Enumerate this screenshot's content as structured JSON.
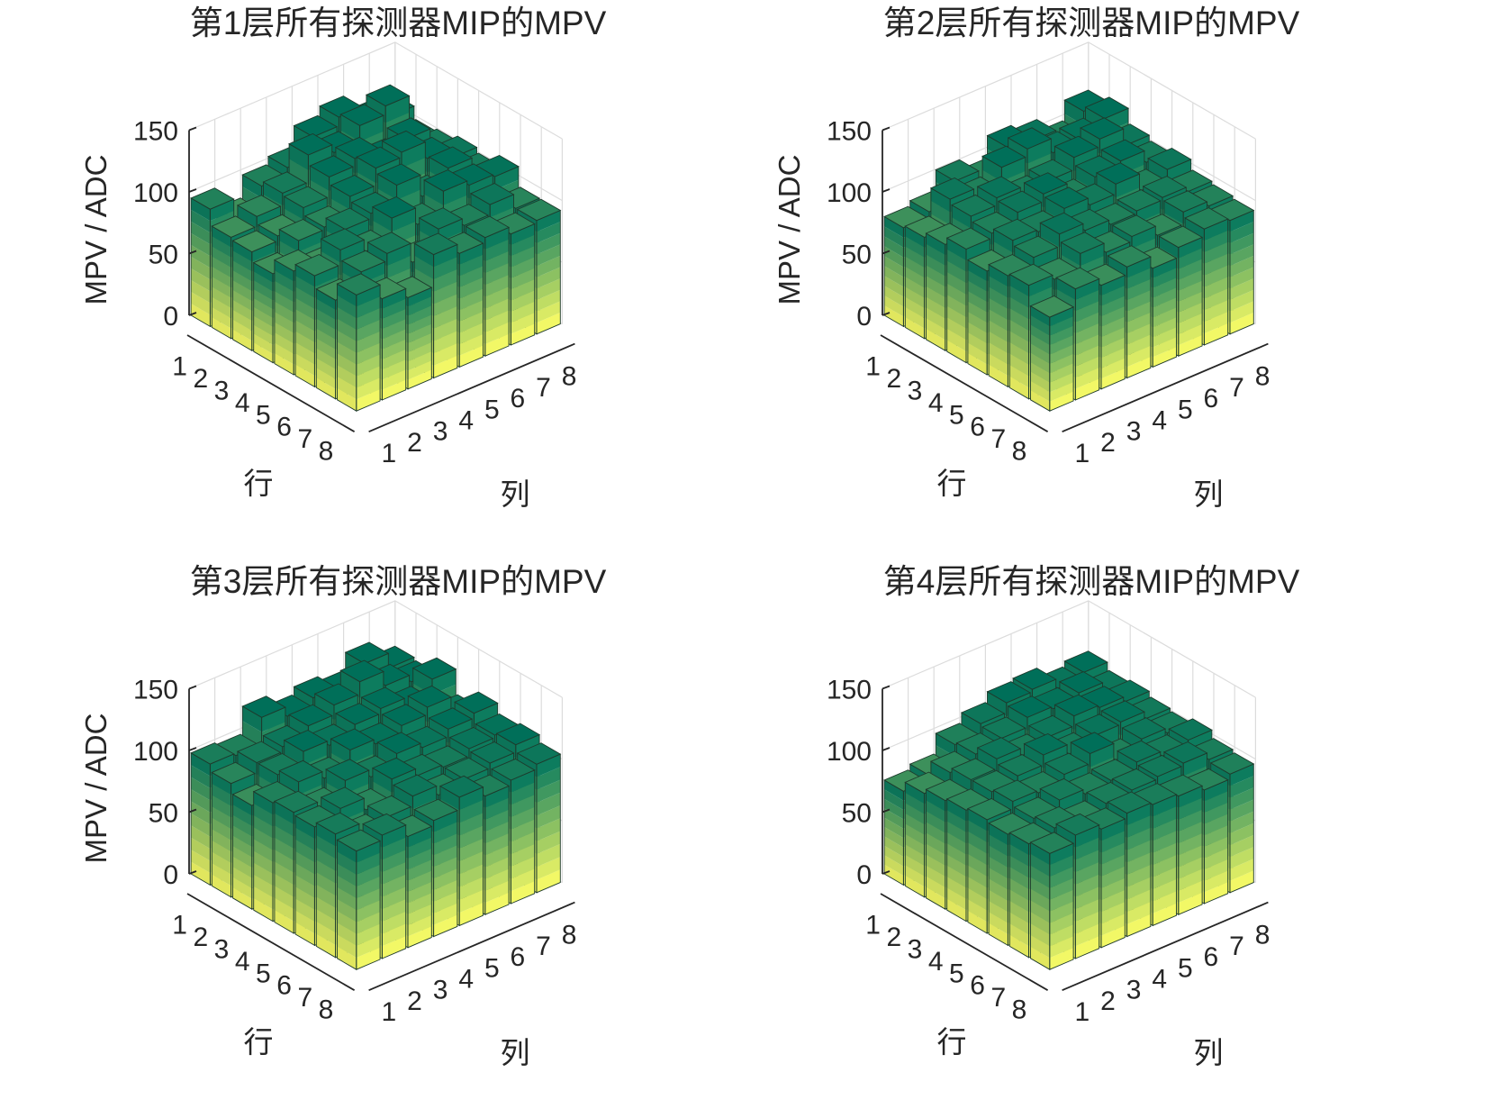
{
  "colors": {
    "low": "#ffff66",
    "high": "#00755e",
    "edge": "#1e3a2c",
    "text": "#262626",
    "grid": "#dcdcdc"
  },
  "chart_data": [
    {
      "type": "bar3d",
      "title": "第1层所有探测器MIP的MPV",
      "ylabel": "MPV / ADC",
      "row_label": "行",
      "col_label": "列",
      "rows": [
        "1",
        "2",
        "3",
        "4",
        "5",
        "6",
        "7",
        "8"
      ],
      "cols": [
        "1",
        "2",
        "3",
        "4",
        "5",
        "6",
        "7",
        "8"
      ],
      "zticks": [
        "0",
        "50",
        "100",
        "150"
      ],
      "zlim": [
        0,
        150
      ],
      "z": [
        [
          95,
          78,
          96,
          102,
          118,
          125,
          112,
          108
        ],
        [
          82,
          90,
          100,
          122,
          115,
          128,
          135,
          98
        ],
        [
          80,
          84,
          98,
          114,
          120,
          110,
          118,
          100
        ],
        [
          72,
          90,
          92,
          108,
          122,
          126,
          112,
          104
        ],
        [
          84,
          78,
          100,
          104,
          118,
          100,
          114,
          100
        ],
        [
          90,
          102,
          92,
          110,
          96,
          114,
          110,
          108
        ],
        [
          80,
          94,
          100,
          84,
          102,
          96,
          104,
          92
        ],
        [
          94,
          82,
          74,
          100,
          92,
          96,
          90,
          92
        ]
      ]
    },
    {
      "type": "bar3d",
      "title": "第2层所有探测器MIP的MPV",
      "ylabel": "MPV / ADC",
      "row_label": "行",
      "col_label": "列",
      "rows": [
        "1",
        "2",
        "3",
        "4",
        "5",
        "6",
        "7",
        "8"
      ],
      "cols": [
        "1",
        "2",
        "3",
        "4",
        "5",
        "6",
        "7",
        "8"
      ],
      "zticks": [
        "0",
        "50",
        "100",
        "150"
      ],
      "zlim": [
        0,
        150
      ],
      "z": [
        [
          80,
          84,
          100,
          92,
          110,
          106,
          96,
          112
        ],
        [
          82,
          104,
          96,
          112,
          118,
          106,
          108,
          116
        ],
        [
          86,
          100,
          106,
          98,
          102,
          112,
          118,
          104
        ],
        [
          92,
          96,
          104,
          110,
          96,
          106,
          110,
          100
        ],
        [
          84,
          100,
          98,
          108,
          102,
          110,
          96,
          104
        ],
        [
          90,
          96,
          106,
          100,
          96,
          98,
          100,
          96
        ],
        [
          92,
          88,
          100,
          92,
          96,
          88,
          98,
          94
        ],
        [
          76,
          90,
          84,
          90,
          80,
          88,
          94,
          92
        ]
      ]
    },
    {
      "type": "bar3d",
      "title": "第3层所有探测器MIP的MPV",
      "ylabel": "MPV / ADC",
      "row_label": "行",
      "col_label": "列",
      "rows": [
        "1",
        "2",
        "3",
        "4",
        "5",
        "6",
        "7",
        "8"
      ],
      "cols": [
        "1",
        "2",
        "3",
        "4",
        "5",
        "6",
        "7",
        "8"
      ],
      "zticks": [
        "0",
        "50",
        "100",
        "150"
      ],
      "zlim": [
        0,
        150
      ],
      "z": [
        [
          98,
          96,
          118,
          110,
          116,
          112,
          126,
          114
        ],
        [
          92,
          100,
          104,
          112,
          120,
          130,
          118,
          112
        ],
        [
          84,
          100,
          110,
          106,
          114,
          118,
          110,
          124
        ],
        [
          96,
          104,
          98,
          112,
          108,
          114,
          120,
          104
        ],
        [
          98,
          92,
          106,
          100,
          110,
          106,
          112,
          116
        ],
        [
          96,
          102,
          92,
          108,
          102,
          100,
          106,
          108
        ],
        [
          100,
          90,
          96,
          104,
          96,
          100,
          104,
          110
        ],
        [
          96,
          100,
          90,
          94,
          104,
          96,
          100,
          104
        ]
      ]
    },
    {
      "type": "bar3d",
      "title": "第4层所有探测器MIP的MPV",
      "ylabel": "",
      "row_label": "行",
      "col_label": "列",
      "rows": [
        "1",
        "2",
        "3",
        "4",
        "5",
        "6",
        "7",
        "8"
      ],
      "cols": [
        "1",
        "2",
        "3",
        "4",
        "5",
        "6",
        "7",
        "8"
      ],
      "zticks": [
        "50",
        "0"
      ],
      "zticks_clipped": [
        "150",
        "100"
      ],
      "zlim": [
        0,
        150
      ],
      "z": [
        [
          76,
          80,
          96,
          104,
          112,
          114,
          106,
          110
        ],
        [
          84,
          92,
          98,
          102,
          110,
          108,
          112,
          104
        ],
        [
          88,
          96,
          104,
          98,
          104,
          112,
          110,
          106
        ],
        [
          90,
          96,
          100,
          108,
          100,
          106,
          108,
          102
        ],
        [
          92,
          98,
          96,
          102,
          110,
          96,
          104,
          100
        ],
        [
          90,
          94,
          100,
          96,
          98,
          104,
          100,
          104
        ],
        [
          92,
          96,
          92,
          98,
          100,
          102,
          104,
          98
        ],
        [
          94,
          100,
          96,
          100,
          98,
          96,
          92,
          96
        ]
      ]
    }
  ]
}
